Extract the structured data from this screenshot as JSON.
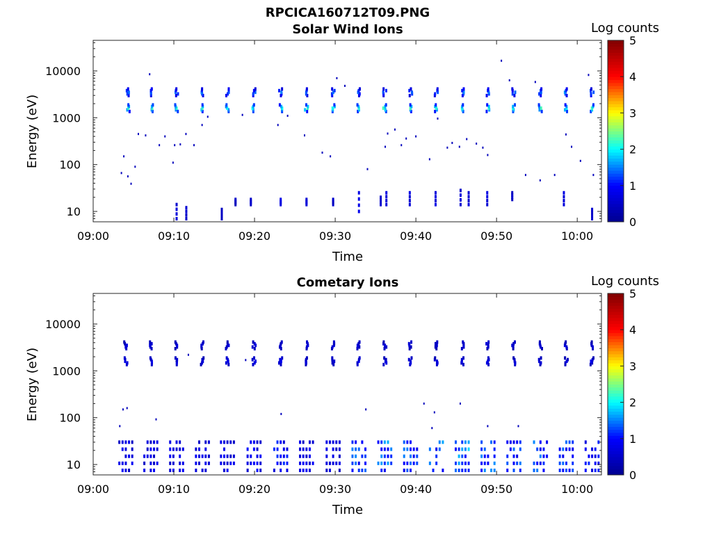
{
  "figure_title": "RPCICA160712T09.PNG",
  "chart_data": [
    {
      "type": "heatmap",
      "title": "Solar Wind Ions",
      "xlabel": "Time",
      "ylabel": "Energy (eV)",
      "colorbar_label": "Log counts",
      "x_range": [
        "09:00",
        "10:03"
      ],
      "y_range": [
        6,
        45000
      ],
      "y_scale": "log",
      "x_ticks": [
        "09:00",
        "09:10",
        "09:20",
        "09:30",
        "09:40",
        "09:50",
        "10:00"
      ],
      "y_ticks": [
        "10",
        "100",
        "1000",
        "10000"
      ],
      "colorbar_ticks": [
        "0",
        "1",
        "2",
        "3",
        "4",
        "5"
      ],
      "clim": [
        0,
        5
      ],
      "colormap": [
        "#00008f",
        "#0000ff",
        "#00ffff",
        "#ffff00",
        "#ff0000",
        "#800000"
      ],
      "sweep_times_min": [
        4.3,
        7.2,
        10.3,
        13.5,
        16.6,
        19.9,
        23.2,
        26.4,
        29.7,
        32.9,
        36.1,
        39.3,
        42.5,
        45.7,
        48.9,
        52.1,
        55.4,
        58.6,
        61.8
      ],
      "band_energies_ev": [
        1600,
        3500
      ],
      "band_log_counts": [
        2.0,
        1.3
      ],
      "low_energy_bursts": [
        {
          "t": 10.3,
          "e": [
            7,
            14
          ],
          "c": 0.5
        },
        {
          "t": 11.5,
          "e": [
            7,
            12
          ],
          "c": 0.5
        },
        {
          "t": 15.9,
          "e": [
            7,
            11
          ],
          "c": 0.4
        },
        {
          "t": 17.6,
          "e": [
            14,
            18
          ],
          "c": 0.4
        },
        {
          "t": 19.5,
          "e": [
            14,
            18
          ],
          "c": 0.4
        },
        {
          "t": 23.2,
          "e": [
            14,
            18
          ],
          "c": 0.6
        },
        {
          "t": 26.4,
          "e": [
            14,
            18
          ],
          "c": 0.5
        },
        {
          "t": 29.7,
          "e": [
            14,
            18
          ],
          "c": 0.4
        },
        {
          "t": 32.9,
          "e": [
            10,
            25
          ],
          "c": 0.7
        },
        {
          "t": 35.6,
          "e": [
            14,
            20
          ],
          "c": 0.5
        },
        {
          "t": 36.3,
          "e": [
            14,
            25
          ],
          "c": 0.6
        },
        {
          "t": 39.2,
          "e": [
            14,
            25
          ],
          "c": 0.6
        },
        {
          "t": 42.4,
          "e": [
            14,
            25
          ],
          "c": 0.6
        },
        {
          "t": 45.5,
          "e": [
            14,
            28
          ],
          "c": 0.5
        },
        {
          "t": 46.5,
          "e": [
            14,
            25
          ],
          "c": 0.5
        },
        {
          "t": 48.8,
          "e": [
            14,
            25
          ],
          "c": 0.6
        },
        {
          "t": 51.9,
          "e": [
            18,
            25
          ],
          "c": 0.4
        },
        {
          "t": 58.3,
          "e": [
            14,
            25
          ],
          "c": 0.6
        },
        {
          "t": 61.8,
          "e": [
            7,
            11
          ],
          "c": 0.4
        }
      ],
      "scatter_points": [
        [
          3.5,
          66
        ],
        [
          3.8,
          150
        ],
        [
          4.3,
          56
        ],
        [
          4.7,
          39
        ],
        [
          5.2,
          90
        ],
        [
          5.6,
          450
        ],
        [
          6.5,
          420
        ],
        [
          7.0,
          8500
        ],
        [
          8.2,
          260
        ],
        [
          8.9,
          400
        ],
        [
          9.9,
          110
        ],
        [
          10.1,
          260
        ],
        [
          10.8,
          270
        ],
        [
          11.5,
          450
        ],
        [
          12.5,
          260
        ],
        [
          13.5,
          700
        ],
        [
          14.2,
          1050
        ],
        [
          18.5,
          1150
        ],
        [
          22.9,
          700
        ],
        [
          24.1,
          1100
        ],
        [
          26.2,
          420
        ],
        [
          28.4,
          180
        ],
        [
          29.4,
          150
        ],
        [
          30.2,
          7000
        ],
        [
          31.2,
          4800
        ],
        [
          34.0,
          80
        ],
        [
          36.2,
          240
        ],
        [
          36.5,
          460
        ],
        [
          37.4,
          560
        ],
        [
          38.2,
          260
        ],
        [
          38.8,
          360
        ],
        [
          40.0,
          400
        ],
        [
          41.7,
          130
        ],
        [
          42.7,
          960
        ],
        [
          43.9,
          230
        ],
        [
          44.5,
          290
        ],
        [
          45.4,
          240
        ],
        [
          46.3,
          350
        ],
        [
          47.5,
          280
        ],
        [
          48.3,
          230
        ],
        [
          48.9,
          160
        ],
        [
          50.6,
          16500
        ],
        [
          51.6,
          6300
        ],
        [
          53.6,
          60
        ],
        [
          54.8,
          5800
        ],
        [
          55.4,
          46
        ],
        [
          57.2,
          60
        ],
        [
          58.6,
          440
        ],
        [
          59.3,
          240
        ],
        [
          60.4,
          120
        ],
        [
          61.4,
          8200
        ],
        [
          62.0,
          60
        ]
      ]
    },
    {
      "type": "heatmap",
      "title": "Cometary Ions",
      "xlabel": "Time",
      "ylabel": "Energy (eV)",
      "colorbar_label": "Log counts",
      "x_range": [
        "09:00",
        "10:03"
      ],
      "y_range": [
        6,
        45000
      ],
      "y_scale": "log",
      "x_ticks": [
        "09:00",
        "09:10",
        "09:20",
        "09:30",
        "09:40",
        "09:50",
        "10:00"
      ],
      "y_ticks": [
        "10",
        "100",
        "1000",
        "10000"
      ],
      "colorbar_ticks": [
        "0",
        "1",
        "2",
        "3",
        "4",
        "5"
      ],
      "clim": [
        0,
        5
      ],
      "colormap": [
        "#00008f",
        "#0000ff",
        "#00ffff",
        "#ffff00",
        "#ff0000",
        "#800000"
      ],
      "sweep_times_min": [
        4.0,
        7.1,
        10.3,
        13.5,
        16.6,
        19.9,
        23.2,
        26.4,
        29.7,
        32.9,
        36.1,
        39.3,
        42.5,
        45.7,
        48.9,
        52.1,
        55.4,
        58.6,
        61.8
      ],
      "band_energies_ev": [
        1600,
        3500
      ],
      "band_log_counts": [
        0.6,
        0.5
      ],
      "cluster_log_counts": [
        0.8,
        0.8,
        0.8,
        0.8,
        0.8,
        0.9,
        1.0,
        0.8,
        0.7,
        1.3,
        1.4,
        1.3,
        1.4,
        1.6,
        1.4,
        1.3,
        1.3,
        1.2,
        1.0
      ],
      "scatter_points": [
        [
          3.3,
          66
        ],
        [
          3.7,
          150
        ],
        [
          4.2,
          160
        ],
        [
          7.8,
          92
        ],
        [
          10.3,
          1600
        ],
        [
          11.8,
          2200
        ],
        [
          18.9,
          1700
        ],
        [
          23.3,
          120
        ],
        [
          33.8,
          150
        ],
        [
          41.0,
          200
        ],
        [
          42.0,
          60
        ],
        [
          42.3,
          130
        ],
        [
          45.5,
          200
        ],
        [
          48.9,
          66
        ],
        [
          52.7,
          66
        ]
      ]
    }
  ]
}
